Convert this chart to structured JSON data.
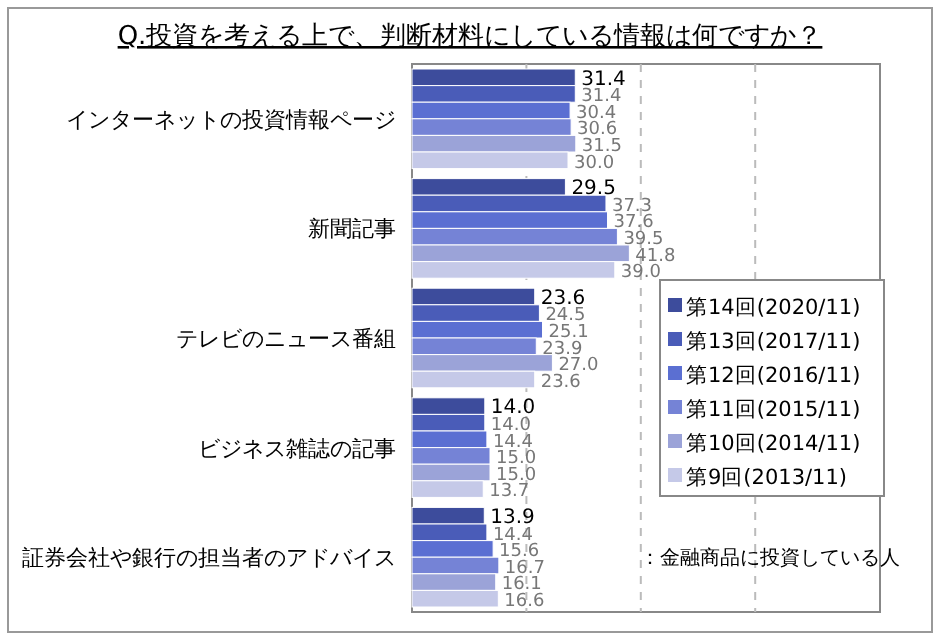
{
  "chart_data": {
    "type": "bar",
    "orientation": "horizontal",
    "title": "Q.投資を考える上で、判断材料にしている情報は何ですか？",
    "categories": [
      "インターネットの投資情報ページ",
      "新聞記事",
      "テレビのニュース番組",
      "ビジネス雑誌の記事",
      "証券会社や銀行の担当者のアドバイス"
    ],
    "series": [
      {
        "name": "第14回(2020/11)",
        "color": "#3d4c9c",
        "values": [
          31.4,
          29.5,
          23.6,
          14.0,
          13.9
        ],
        "value_labels": [
          "31.4",
          "29.5",
          "23.6",
          "14.0",
          "13.9"
        ]
      },
      {
        "name": "第13回(2017/11)",
        "color": "#4a5cb8",
        "values": [
          31.4,
          37.3,
          24.5,
          14.0,
          14.4
        ],
        "value_labels": [
          "31.4",
          "37.3",
          "24.5",
          "14.0",
          "14.4"
        ]
      },
      {
        "name": "第12回(2016/11)",
        "color": "#5b6fd2",
        "values": [
          30.4,
          37.6,
          25.1,
          14.4,
          15.6
        ],
        "value_labels": [
          "30.4",
          "37.6",
          "25.1",
          "14.4",
          "15.6"
        ]
      },
      {
        "name": "第11回(2015/11)",
        "color": "#7583d6",
        "values": [
          30.6,
          39.5,
          23.9,
          15.0,
          16.7
        ],
        "value_labels": [
          "30.6",
          "39.5",
          "23.9",
          "15.0",
          "16.7"
        ]
      },
      {
        "name": "第10回(2014/11)",
        "color": "#9ba3d8",
        "values": [
          31.5,
          41.8,
          27.0,
          15.0,
          16.1
        ],
        "value_labels": [
          "31.5",
          "41.8",
          "27.0",
          "15.0",
          "16.1"
        ]
      },
      {
        "name": "第9回(2013/11)",
        "color": "#c5c9e8",
        "values": [
          30.0,
          39.0,
          23.6,
          13.7,
          16.6
        ],
        "value_labels": [
          "30.0",
          "39.0",
          "23.6",
          "13.7",
          "16.6"
        ]
      }
    ],
    "xlim": [
      0,
      90
    ],
    "xticks": [
      {
        "value": 22,
        "label": null
      },
      {
        "value": 44,
        "label": null
      },
      {
        "value": 66,
        "label": null
      }
    ],
    "grid": "x",
    "legend": "right",
    "annotations": [
      "：金融商品に投資している人"
    ]
  }
}
